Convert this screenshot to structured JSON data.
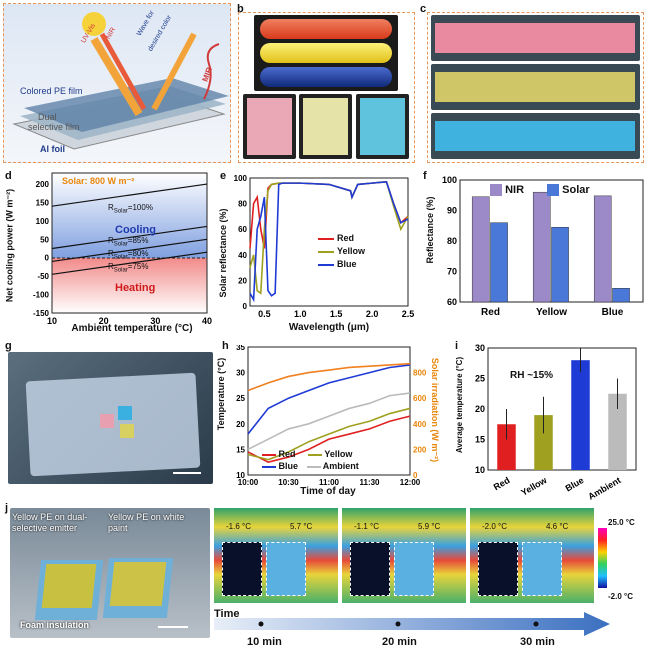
{
  "panels": {
    "a": "a",
    "b": "b",
    "c": "c",
    "d": "d",
    "e": "e",
    "f": "f",
    "g": "g",
    "h": "h",
    "i": "i",
    "j": "j"
  },
  "schematic": {
    "uv_vis": "UV-Vis",
    "nir": "NIR",
    "wave": "Wave for",
    "desired": "desired color",
    "mir": "MIR",
    "colored_pe": "Colored PE film",
    "dual": "Dual",
    "selective": "selective film",
    "al_foil": "Al foil"
  },
  "cooling_plot": {
    "solar_label": "Solar: 800 W m⁻²",
    "cooling": "Cooling",
    "heating": "Heating",
    "lines": [
      "R",
      "R",
      "R",
      "R"
    ],
    "subs": [
      "Solar",
      "Solar",
      "Solar",
      "Solar"
    ],
    "vals": [
      "=100%",
      "=85%",
      "=80%",
      "=75%"
    ],
    "xlabel": "Ambient temperature (°C)",
    "ylabel": "Net cooling power (W m⁻²)",
    "xticks": [
      "10",
      "20",
      "30",
      "40"
    ],
    "yticks": [
      "200",
      "150",
      "100",
      "50",
      "0",
      "-50",
      "-100",
      "-150"
    ]
  },
  "reflect_plot": {
    "xlabel": "Wavelength (μm)",
    "ylabel": "Solar reflectance (%)",
    "xticks": [
      "0.5",
      "1.0",
      "1.5",
      "2.0",
      "2.5"
    ],
    "yticks": [
      "100",
      "80",
      "60",
      "40",
      "20",
      "0"
    ],
    "legend": [
      "Red",
      "Yellow",
      "Blue"
    ],
    "colors": [
      "#e02020",
      "#a0a020",
      "#1f3bd6"
    ]
  },
  "bar_f": {
    "ylabel": "Reflectance (%)",
    "legend": [
      "NIR",
      "Solar"
    ],
    "categories": [
      "Red",
      "Yellow",
      "Blue"
    ],
    "yticks": [
      "100",
      "90",
      "80",
      "70",
      "60"
    ]
  },
  "temp_plot": {
    "xlabel": "Time of day",
    "ylabel": "Temperature (°C)",
    "ylabel2": "Solar irradiation (W m⁻²)",
    "xticks": [
      "10:00",
      "10:30",
      "11:00",
      "11:30",
      "12:00"
    ],
    "yticks": [
      "35",
      "30",
      "25",
      "20",
      "15",
      "10"
    ],
    "y2ticks": [
      "800",
      "600",
      "400",
      "200",
      "0"
    ],
    "legend": [
      "Red",
      "Yellow",
      "Blue",
      "Ambient"
    ]
  },
  "bar_i": {
    "ylabel": "Average temperature (°C)",
    "annotation": "RH ~15%",
    "categories": [
      "Red",
      "Yellow",
      "Blue",
      "Ambient"
    ],
    "yticks": [
      "30",
      "25",
      "20",
      "15",
      "10"
    ]
  },
  "field": {
    "yellow_dual": "Yellow PE on dual-selective emitter",
    "yellow_white": "Yellow PE on white paint",
    "foam": "Foam insulation"
  },
  "thermal": {
    "frames": [
      {
        "l": "-1.6 °C",
        "r": "5.7 °C"
      },
      {
        "l": "-1.1 °C",
        "r": "5.9 °C"
      },
      {
        "l": "-2.0 °C",
        "r": "4.6 °C"
      }
    ],
    "scale_max": "25.0 °C",
    "scale_min": "-2.0 °C",
    "time_label": "Time",
    "times": [
      "10 min",
      "20 min",
      "30 min"
    ]
  },
  "chart_data": [
    {
      "type": "line",
      "xlabel": "Ambient temperature (°C)",
      "ylabel": "Net cooling power (W m⁻²)",
      "xlim": [
        10,
        40
      ],
      "ylim": [
        -150,
        230
      ],
      "series": [
        {
          "name": "RSolar=100%",
          "x": [
            10,
            40
          ],
          "values": [
            140,
            200
          ]
        },
        {
          "name": "RSolar=85%",
          "x": [
            10,
            40
          ],
          "values": [
            25,
            85
          ]
        },
        {
          "name": "RSolar=80%",
          "x": [
            10,
            40
          ],
          "values": [
            -10,
            50
          ]
        },
        {
          "name": "RSolar=75%",
          "x": [
            10,
            40
          ],
          "values": [
            -45,
            15
          ]
        }
      ]
    },
    {
      "type": "line",
      "xlabel": "Wavelength (μm)",
      "ylabel": "Solar reflectance (%)",
      "xlim": [
        0.3,
        2.5
      ],
      "ylim": [
        0,
        100
      ],
      "series": [
        {
          "name": "Red",
          "x": [
            0.3,
            0.35,
            0.4,
            0.45,
            0.5,
            0.55,
            0.6,
            0.7,
            1.0,
            1.4,
            1.7,
            1.72,
            1.8,
            2.0,
            2.2,
            2.3,
            2.4,
            2.5
          ],
          "values": [
            45,
            80,
            85,
            60,
            45,
            92,
            95,
            96,
            96,
            95,
            90,
            85,
            95,
            96,
            97,
            80,
            65,
            70
          ]
        },
        {
          "name": "Yellow",
          "x": [
            0.3,
            0.35,
            0.4,
            0.45,
            0.5,
            0.55,
            0.6,
            0.7,
            1.0,
            1.4,
            1.7,
            1.72,
            1.8,
            2.0,
            2.2,
            2.3,
            2.4,
            2.5
          ],
          "values": [
            30,
            40,
            12,
            10,
            60,
            90,
            95,
            96,
            96,
            95,
            90,
            85,
            95,
            96,
            97,
            78,
            60,
            70
          ]
        },
        {
          "name": "Blue",
          "x": [
            0.3,
            0.35,
            0.4,
            0.45,
            0.5,
            0.55,
            0.6,
            0.65,
            0.7,
            0.75,
            1.0,
            1.4,
            1.7,
            1.72,
            1.8,
            2.0,
            2.2,
            2.3,
            2.4,
            2.5
          ],
          "values": [
            10,
            5,
            60,
            70,
            85,
            12,
            8,
            10,
            95,
            96,
            96,
            95,
            90,
            85,
            95,
            96,
            97,
            80,
            65,
            68
          ]
        }
      ]
    },
    {
      "type": "bar",
      "ylabel": "Reflectance (%)",
      "categories": [
        "Red",
        "Yellow",
        "Blue"
      ],
      "ylim": [
        60,
        100
      ],
      "series": [
        {
          "name": "NIR",
          "values": [
            94.5,
            96,
            94.8
          ]
        },
        {
          "name": "Solar",
          "values": [
            86,
            84.5,
            64.5
          ]
        }
      ]
    },
    {
      "type": "line",
      "xlabel": "Time of day",
      "ylabel": "Temperature (°C)",
      "ylim": [
        10,
        35
      ],
      "x": [
        "10:00",
        "10:15",
        "10:30",
        "10:45",
        "11:00",
        "11:15",
        "11:30",
        "11:45",
        "12:00"
      ],
      "series": [
        {
          "name": "Red",
          "values": [
            14.5,
            12.5,
            13.5,
            15,
            17,
            18,
            19,
            20.5,
            21.5
          ]
        },
        {
          "name": "Yellow",
          "values": [
            14,
            13,
            14.5,
            16.5,
            18,
            19.5,
            20.5,
            22,
            23
          ]
        },
        {
          "name": "Blue",
          "values": [
            18,
            23,
            25,
            26.5,
            28,
            29,
            30,
            31,
            31.5
          ]
        },
        {
          "name": "Ambient",
          "values": [
            15,
            17,
            19,
            20,
            21.5,
            23,
            24,
            25.5,
            26
          ]
        },
        {
          "name": "Solar irradiation",
          "values": [
            660,
            720,
            770,
            800,
            820,
            840,
            850,
            860,
            870
          ]
        }
      ]
    },
    {
      "type": "bar",
      "ylabel": "Average temperature (°C)",
      "categories": [
        "Red",
        "Yellow",
        "Blue",
        "Ambient"
      ],
      "ylim": [
        10,
        30
      ],
      "values": [
        17.5,
        19,
        28,
        22.5
      ],
      "errors": [
        2.5,
        3,
        2,
        2.5
      ]
    }
  ]
}
